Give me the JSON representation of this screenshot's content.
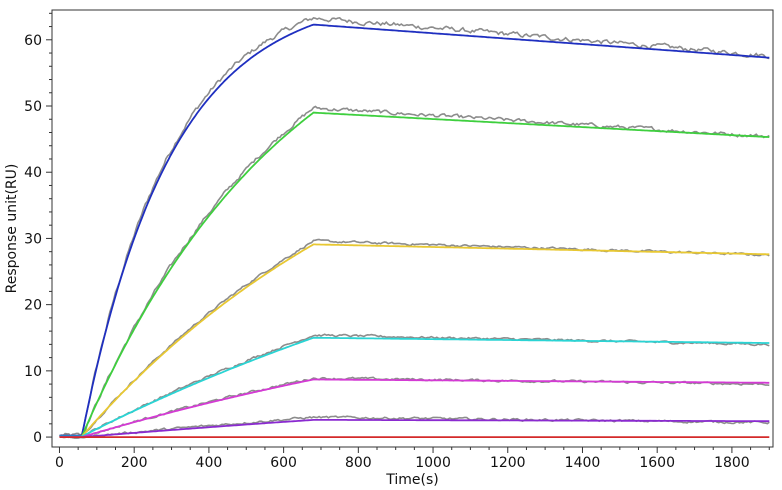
{
  "chart_data": {
    "type": "line",
    "title": "",
    "xlabel": "Time(s)",
    "ylabel": "Response unit(RU)",
    "xlim": [
      -20,
      1910
    ],
    "ylim": [
      -1.5,
      64.5
    ],
    "xticks": [
      0,
      200,
      400,
      600,
      800,
      1000,
      1200,
      1400,
      1600,
      1800
    ],
    "yticks": [
      0,
      10,
      20,
      30,
      40,
      50,
      60
    ],
    "grid": false,
    "legend": "none",
    "association_start": 60,
    "dissociation_start": 680,
    "x_end": 1900,
    "raw_color": "#8c8c8c",
    "series": [
      {
        "color": "#1f2fc0",
        "baseline": 0.2,
        "peak": 62.3,
        "end": 57.3,
        "kobs": 0.0042,
        "raw_peak": 63.3,
        "raw_end": 57.6
      },
      {
        "color": "#3ecf3e",
        "baseline": 0.1,
        "peak": 49.0,
        "end": 45.3,
        "kobs": 0.0018,
        "raw_peak": 49.7,
        "raw_end": 45.4
      },
      {
        "color": "#e8c832",
        "baseline": 0.1,
        "peak": 29.1,
        "end": 27.6,
        "kobs": 0.0011,
        "raw_peak": 29.6,
        "raw_end": 27.5
      },
      {
        "color": "#2ad4d4",
        "baseline": 0.1,
        "peak": 15.0,
        "end": 14.2,
        "kobs": 0.0006,
        "raw_peak": 15.4,
        "raw_end": 14.0
      },
      {
        "color": "#d43ad4",
        "baseline": 0.0,
        "peak": 8.7,
        "end": 8.2,
        "kobs": 0.0006,
        "raw_peak": 8.9,
        "raw_end": 8.0
      },
      {
        "color": "#8a2ad0",
        "baseline": 0.0,
        "peak": 2.6,
        "end": 2.4,
        "kobs": 0.0003,
        "raw_peak": 3.0,
        "raw_end": 2.2
      },
      {
        "color": "#d42a2a",
        "baseline": 0.0,
        "peak": 0.0,
        "end": 0.0,
        "kobs": 0.0003,
        "raw_peak": 0.0,
        "raw_end": 0.0
      }
    ]
  }
}
